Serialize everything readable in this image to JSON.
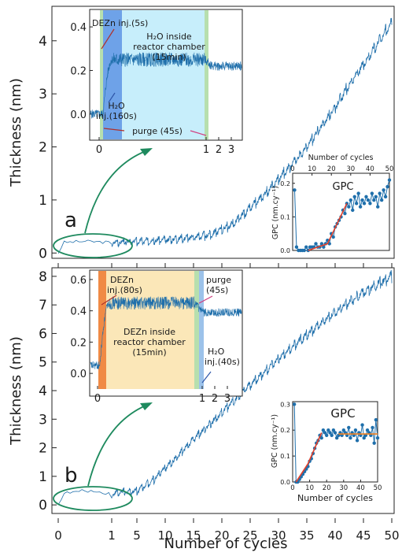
{
  "figure": {
    "xlabel": "Number of cycles",
    "colors": {
      "data": "#1f6fab",
      "green_ann": "#1e8a5e",
      "red_ann": "#b0302a",
      "fit": "#e4402a",
      "fit2": "#f07f1e"
    }
  },
  "chart_data": [
    {
      "type": "line",
      "panel": "a",
      "label": "a",
      "ylabel": "Thickness (nm)",
      "ylim": [
        -0.1,
        4.65
      ],
      "yticks": [
        "0",
        "1",
        "2",
        "3",
        "4"
      ],
      "xticks": [
        "0",
        "1",
        "5",
        "10",
        "15",
        "20",
        "25",
        "30",
        "35",
        "40",
        "45",
        "50"
      ],
      "x_axis_note": "axis is compressed from 0 to 1 (inset expanded), linear from 1 to 50",
      "series": [
        {
          "x": [
            0,
            0.1,
            0.5,
            1,
            5,
            10,
            15,
            18,
            22,
            25,
            28,
            30,
            33,
            35,
            38,
            40,
            43,
            45,
            48,
            50
          ],
          "y": [
            0,
            0.2,
            0.22,
            0.2,
            0.22,
            0.25,
            0.3,
            0.35,
            0.55,
            0.85,
            1.15,
            1.4,
            1.75,
            2.0,
            2.45,
            2.75,
            3.25,
            3.55,
            4.05,
            4.35
          ]
        }
      ],
      "inset_main": {
        "xticks": [
          "0",
          "1",
          "2",
          "3"
        ],
        "yticks": [
          "0.0",
          "0.2",
          "0.4"
        ],
        "ylim": [
          -0.12,
          0.48
        ],
        "annotations": [
          {
            "key": "dezn",
            "text": "DEZn inj.(5s)"
          },
          {
            "key": "h2o_inside_1",
            "text": "H₂O inside"
          },
          {
            "key": "h2o_inside_2",
            "text": "reactor chamber"
          },
          {
            "key": "h2o_inside_3",
            "text": "(15min)"
          },
          {
            "key": "h2o_inj_1",
            "text": "H₂O"
          },
          {
            "key": "h2o_inj_2",
            "text": "inj.(160s)"
          },
          {
            "key": "purge",
            "text": "purge (45s)"
          }
        ],
        "levels": {
          "before": 0.0,
          "plateau": 0.25,
          "after": 0.22
        }
      },
      "inset_gpc": {
        "title": "GPC",
        "xlabel": "Number of cycles",
        "ylabel": "GPC (nm.cy⁻¹)",
        "xticks": [
          0,
          10,
          20,
          30,
          40,
          50
        ],
        "yticks": [
          "0.0",
          "0.1",
          "0.2"
        ],
        "xlim": [
          0,
          50
        ],
        "ylim": [
          0,
          0.23
        ],
        "points_x": [
          1,
          2,
          3,
          4,
          5,
          6,
          7,
          8,
          9,
          10,
          11,
          12,
          13,
          14,
          15,
          16,
          17,
          18,
          19,
          20,
          21,
          22,
          23,
          24,
          25,
          26,
          27,
          28,
          29,
          30,
          31,
          32,
          33,
          34,
          35,
          36,
          37,
          38,
          39,
          40,
          41,
          42,
          43,
          44,
          45,
          46,
          47,
          48,
          49,
          50
        ],
        "points_y": [
          0.18,
          0.01,
          0.0,
          0.0,
          0.0,
          0.0,
          0.01,
          0.0,
          0.01,
          0.01,
          0.01,
          0.02,
          0.01,
          0.01,
          0.02,
          0.01,
          0.02,
          0.03,
          0.02,
          0.05,
          0.04,
          0.07,
          0.08,
          0.09,
          0.1,
          0.12,
          0.11,
          0.14,
          0.13,
          0.15,
          0.12,
          0.16,
          0.14,
          0.17,
          0.13,
          0.15,
          0.14,
          0.16,
          0.15,
          0.14,
          0.17,
          0.15,
          0.16,
          0.13,
          0.17,
          0.15,
          0.18,
          0.16,
          0.19,
          0.21
        ],
        "fit_x": [
          8,
          18,
          28
        ],
        "fit_y": [
          0.0,
          0.02,
          0.14
        ]
      }
    },
    {
      "type": "line",
      "panel": "b",
      "label": "b",
      "ylabel": "Thickness (nm)",
      "ylim": [
        -0.3,
        8.3
      ],
      "yticks": [
        "0",
        "1",
        "2",
        "3",
        "4",
        "5",
        "6",
        "7",
        "8"
      ],
      "xticks": [
        "0",
        "1",
        "5",
        "10",
        "15",
        "20",
        "25",
        "30",
        "35",
        "40",
        "45",
        "50"
      ],
      "series": [
        {
          "x": [
            0,
            0.1,
            0.5,
            1,
            5,
            8,
            10,
            12,
            15,
            18,
            20,
            25,
            30,
            35,
            40,
            45,
            50
          ],
          "y": [
            0,
            0.4,
            0.5,
            0.4,
            0.5,
            0.9,
            1.3,
            1.65,
            2.3,
            2.85,
            3.25,
            4.2,
            5.1,
            5.95,
            6.75,
            7.45,
            8.0
          ]
        }
      ],
      "inset_main": {
        "xticks": [
          "0",
          "1",
          "2",
          "3"
        ],
        "yticks": [
          "0.0",
          "0.2",
          "0.4",
          "0.6"
        ],
        "ylim": [
          -0.1,
          0.66
        ],
        "annotations": [
          {
            "key": "dezn_1",
            "text": "DEZn"
          },
          {
            "key": "dezn_2",
            "text": "inj.(80s)"
          },
          {
            "key": "inside_1",
            "text": "DEZn inside"
          },
          {
            "key": "inside_2",
            "text": "reactor chamber"
          },
          {
            "key": "inside_3",
            "text": "(15min)"
          },
          {
            "key": "purge_1",
            "text": "purge"
          },
          {
            "key": "purge_2",
            "text": "(45s)"
          },
          {
            "key": "h2o_1",
            "text": "H₂O"
          },
          {
            "key": "h2o_2",
            "text": "inj.(40s)"
          }
        ],
        "levels": {
          "before": 0.05,
          "plateau": 0.45,
          "after": 0.39
        }
      },
      "inset_gpc": {
        "title": "GPC",
        "xlabel": "Number of cycles",
        "ylabel": "GPC (nm.cy⁻¹)",
        "xticks": [
          0,
          10,
          20,
          30,
          40,
          50
        ],
        "yticks": [
          "0.0",
          "0.1",
          "0.2",
          "0.3"
        ],
        "xlim": [
          0,
          50
        ],
        "ylim": [
          0,
          0.31
        ],
        "points_x": [
          1,
          2,
          3,
          4,
          5,
          6,
          7,
          8,
          9,
          10,
          11,
          12,
          13,
          14,
          15,
          16,
          17,
          18,
          19,
          20,
          21,
          22,
          23,
          24,
          25,
          26,
          27,
          28,
          29,
          30,
          31,
          32,
          33,
          34,
          35,
          36,
          37,
          38,
          39,
          40,
          41,
          42,
          43,
          44,
          45,
          46,
          47,
          48,
          49,
          50
        ],
        "points_y": [
          0.3,
          0.0,
          0.0,
          0.01,
          0.02,
          0.03,
          0.04,
          0.05,
          0.06,
          0.08,
          0.09,
          0.11,
          0.13,
          0.15,
          0.16,
          0.18,
          0.17,
          0.2,
          0.19,
          0.18,
          0.2,
          0.19,
          0.18,
          0.2,
          0.19,
          0.17,
          0.18,
          0.19,
          0.18,
          0.2,
          0.19,
          0.18,
          0.21,
          0.17,
          0.19,
          0.18,
          0.2,
          0.16,
          0.19,
          0.18,
          0.22,
          0.17,
          0.18,
          0.2,
          0.19,
          0.18,
          0.21,
          0.15,
          0.24,
          0.17
        ],
        "fit_x": [
          2,
          9,
          17
        ],
        "fit_y": [
          0.0,
          0.07,
          0.19
        ],
        "fit2_x": [
          27,
          50
        ],
        "fit2_y": [
          0.185,
          0.185
        ]
      }
    }
  ]
}
